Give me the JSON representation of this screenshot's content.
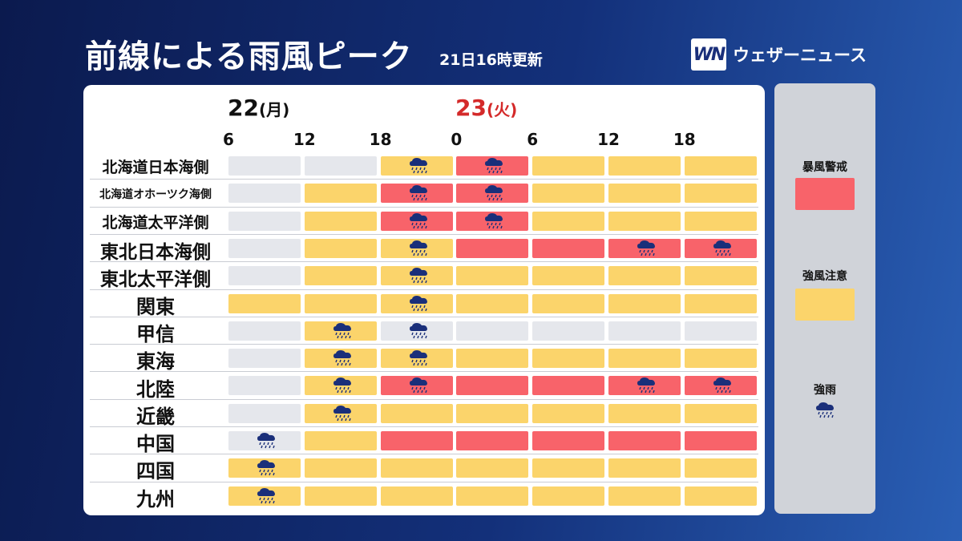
{
  "header": {
    "title": "前線による雨風ピーク",
    "updated": "21日16時更新",
    "logo_mark": "WN",
    "logo_text": "ウェザーニュース"
  },
  "dates": [
    {
      "day": "22",
      "weekday": "(月)"
    },
    {
      "day": "23",
      "weekday": "(火)"
    }
  ],
  "hours": [
    "6",
    "12",
    "18",
    "0",
    "6",
    "12",
    "18"
  ],
  "regions": [
    {
      "label": "北海道日本海側",
      "size": 19,
      "cells": [
        "none",
        "none",
        "strong",
        "storm",
        "strong",
        "strong",
        "strong"
      ],
      "rain": [
        false,
        false,
        true,
        true,
        false,
        false,
        false
      ]
    },
    {
      "label": "北海道オホーツク海側",
      "size": 14,
      "cells": [
        "none",
        "strong",
        "storm",
        "storm",
        "strong",
        "strong",
        "strong"
      ],
      "rain": [
        false,
        false,
        true,
        true,
        false,
        false,
        false
      ]
    },
    {
      "label": "北海道太平洋側",
      "size": 19,
      "cells": [
        "none",
        "strong",
        "storm",
        "storm",
        "strong",
        "strong",
        "strong"
      ],
      "rain": [
        false,
        false,
        true,
        true,
        false,
        false,
        false
      ]
    },
    {
      "label": "東北日本海側",
      "size": 23,
      "cells": [
        "none",
        "strong",
        "strong",
        "storm",
        "storm",
        "storm",
        "storm"
      ],
      "rain": [
        false,
        false,
        true,
        false,
        false,
        true,
        true
      ]
    },
    {
      "label": "東北太平洋側",
      "size": 23,
      "cells": [
        "none",
        "strong",
        "strong",
        "strong",
        "strong",
        "strong",
        "strong"
      ],
      "rain": [
        false,
        false,
        true,
        false,
        false,
        false,
        false
      ]
    },
    {
      "label": "関東",
      "size": 24,
      "cells": [
        "strong",
        "strong",
        "strong",
        "strong",
        "strong",
        "strong",
        "strong"
      ],
      "rain": [
        false,
        false,
        true,
        false,
        false,
        false,
        false
      ]
    },
    {
      "label": "甲信",
      "size": 24,
      "cells": [
        "none",
        "strong",
        "none",
        "none",
        "none",
        "none",
        "none"
      ],
      "rain": [
        false,
        true,
        true,
        false,
        false,
        false,
        false
      ]
    },
    {
      "label": "東海",
      "size": 24,
      "cells": [
        "none",
        "strong",
        "strong",
        "strong",
        "strong",
        "strong",
        "strong"
      ],
      "rain": [
        false,
        true,
        true,
        false,
        false,
        false,
        false
      ]
    },
    {
      "label": "北陸",
      "size": 24,
      "cells": [
        "none",
        "strong",
        "storm",
        "storm",
        "storm",
        "storm",
        "storm"
      ],
      "rain": [
        false,
        true,
        true,
        false,
        false,
        true,
        true
      ]
    },
    {
      "label": "近畿",
      "size": 24,
      "cells": [
        "none",
        "strong",
        "strong",
        "strong",
        "strong",
        "strong",
        "strong"
      ],
      "rain": [
        false,
        true,
        false,
        false,
        false,
        false,
        false
      ]
    },
    {
      "label": "中国",
      "size": 24,
      "cells": [
        "none",
        "strong",
        "storm",
        "storm",
        "storm",
        "storm",
        "storm"
      ],
      "rain": [
        true,
        false,
        false,
        false,
        false,
        false,
        false
      ]
    },
    {
      "label": "四国",
      "size": 24,
      "cells": [
        "strong",
        "strong",
        "strong",
        "strong",
        "strong",
        "strong",
        "strong"
      ],
      "rain": [
        true,
        false,
        false,
        false,
        false,
        false,
        false
      ]
    },
    {
      "label": "九州",
      "size": 24,
      "cells": [
        "strong",
        "strong",
        "strong",
        "strong",
        "strong",
        "strong",
        "strong"
      ],
      "rain": [
        true,
        false,
        false,
        false,
        false,
        false,
        false
      ]
    }
  ],
  "legend": {
    "storm_label": "暴風警戒",
    "strong_label": "強風注意",
    "rain_label": "強雨"
  },
  "colors": {
    "storm": "#f8636a",
    "strong": "#fbd46b",
    "none": "#e5e7ec",
    "cloud": "#1a2f7a",
    "date_23": "#d42a2a"
  },
  "icons": {
    "rain": "heavy-rain-cloud-icon"
  }
}
